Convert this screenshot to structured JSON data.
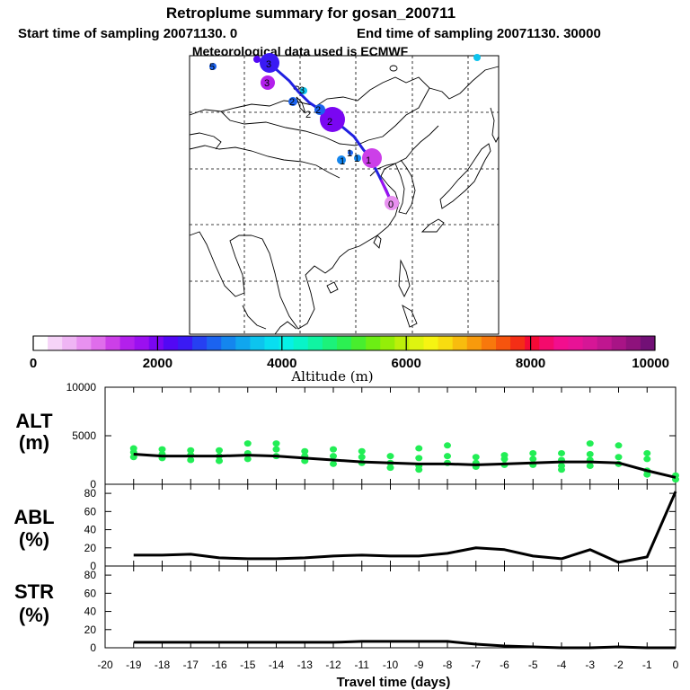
{
  "title": {
    "line1": "Retroplume summary for gosan_200711",
    "line2a": "Start time of sampling 20071130.     0",
    "line2b": "End time of sampling 20071130. 30000",
    "line3": "Meteorological data used is ECMWF"
  },
  "colorbar": {
    "ticks": [
      "0",
      "2000",
      "4000",
      "6000",
      "8000",
      "10000"
    ],
    "label": "Altitude (m)",
    "colors": [
      "#ffffff",
      "#f6d4f8",
      "#efb5f4",
      "#e891f0",
      "#df6deb",
      "#cc3fe8",
      "#b320ec",
      "#9b10f0",
      "#7a06f2",
      "#5208f4",
      "#3a1af4",
      "#2640f2",
      "#1b63f0",
      "#1486ee",
      "#10a6ee",
      "#0dc4ee",
      "#08def0",
      "#06f0e6",
      "#08f4c8",
      "#10f4a2",
      "#1cf27a",
      "#2cf052",
      "#48ee2e",
      "#6cee14",
      "#94ee08",
      "#bcf00a",
      "#def410",
      "#f6f412",
      "#f8dc10",
      "#f8bc0e",
      "#f89a0c",
      "#f8780c",
      "#f6540e",
      "#f42e16",
      "#f40a36",
      "#f40a6c",
      "#f20e8e",
      "#e81296",
      "#d61696",
      "#c01690",
      "#a81486",
      "#8e127c",
      "#721076"
    ]
  },
  "map": {
    "labels": [
      "0",
      "1",
      "1",
      "1",
      "1",
      "2",
      "2",
      "2",
      "2",
      "3",
      "3",
      "3",
      "5"
    ]
  },
  "chart_data": [
    {
      "type": "line",
      "panel": "ALT",
      "ylabel": "ALT\n(m)",
      "ylabel_lines": [
        "ALT",
        "(m)"
      ],
      "ylim": [
        0,
        10000
      ],
      "yticks": [
        "0",
        "5000",
        "10000"
      ],
      "x": [
        -19,
        -18,
        -17,
        -16,
        -15,
        -14,
        -13,
        -12,
        -11,
        -10,
        -9,
        -8,
        -7,
        -6,
        -5,
        -4,
        -3,
        -2,
        -1,
        0
      ],
      "values": [
        3100,
        2900,
        2900,
        2900,
        3000,
        2900,
        2700,
        2500,
        2300,
        2200,
        2100,
        2100,
        2000,
        2100,
        2200,
        2300,
        2300,
        2200,
        1400,
        700
      ],
      "scatter_color": "#22ee55",
      "scatter": [
        [
          -19,
          3700
        ],
        [
          -19,
          3300
        ],
        [
          -19,
          2800
        ],
        [
          -18,
          3600
        ],
        [
          -18,
          3100
        ],
        [
          -18,
          2700
        ],
        [
          -17,
          3500
        ],
        [
          -17,
          3000
        ],
        [
          -17,
          2500
        ],
        [
          -16,
          3500
        ],
        [
          -16,
          2900
        ],
        [
          -16,
          2400
        ],
        [
          -15,
          4200
        ],
        [
          -15,
          3200
        ],
        [
          -15,
          2600
        ],
        [
          -14,
          4200
        ],
        [
          -14,
          3600
        ],
        [
          -14,
          2900
        ],
        [
          -13,
          3400
        ],
        [
          -13,
          2900
        ],
        [
          -13,
          2400
        ],
        [
          -12,
          3600
        ],
        [
          -12,
          2900
        ],
        [
          -12,
          2100
        ],
        [
          -11,
          3400
        ],
        [
          -11,
          2800
        ],
        [
          -11,
          2200
        ],
        [
          -10,
          2900
        ],
        [
          -10,
          2200
        ],
        [
          -10,
          1700
        ],
        [
          -9,
          3700
        ],
        [
          -9,
          2700
        ],
        [
          -9,
          1900
        ],
        [
          -9,
          1500
        ],
        [
          -8,
          4000
        ],
        [
          -8,
          2900
        ],
        [
          -8,
          2200
        ],
        [
          -7,
          2800
        ],
        [
          -7,
          2200
        ],
        [
          -7,
          1800
        ],
        [
          -6,
          3000
        ],
        [
          -6,
          2600
        ],
        [
          -6,
          2000
        ],
        [
          -5,
          3200
        ],
        [
          -5,
          2600
        ],
        [
          -5,
          2000
        ],
        [
          -4,
          3200
        ],
        [
          -4,
          2500
        ],
        [
          -4,
          1900
        ],
        [
          -4,
          1500
        ],
        [
          -3,
          4200
        ],
        [
          -3,
          3100
        ],
        [
          -3,
          2500
        ],
        [
          -3,
          1900
        ],
        [
          -2,
          4000
        ],
        [
          -2,
          2800
        ],
        [
          -2,
          2100
        ],
        [
          -1,
          3200
        ],
        [
          -1,
          2600
        ],
        [
          -1,
          1400
        ],
        [
          -1,
          1000
        ],
        [
          0,
          900
        ],
        [
          0,
          500
        ]
      ],
      "xlim": [
        -20,
        0
      ]
    },
    {
      "type": "line",
      "panel": "ABL",
      "ylabel_lines": [
        "ABL",
        "(%)"
      ],
      "ylim": [
        0,
        90
      ],
      "yticks": [
        "0",
        "20",
        "40",
        "60",
        "80"
      ],
      "x": [
        -19,
        -18,
        -17,
        -16,
        -15,
        -14,
        -13,
        -12,
        -11,
        -10,
        -9,
        -8,
        -7,
        -6,
        -5,
        -4,
        -3,
        -2,
        -1,
        0
      ],
      "values": [
        12,
        12,
        13,
        9,
        8,
        8,
        9,
        11,
        12,
        11,
        11,
        14,
        20,
        18,
        11,
        8,
        18,
        4,
        10,
        82
      ],
      "xlim": [
        -20,
        0
      ]
    },
    {
      "type": "line",
      "panel": "STR",
      "ylabel_lines": [
        "STR",
        "(%)"
      ],
      "ylim": [
        0,
        90
      ],
      "yticks": [
        "0",
        "20",
        "40",
        "60",
        "80"
      ],
      "x": [
        -19,
        -18,
        -17,
        -16,
        -15,
        -14,
        -13,
        -12,
        -11,
        -10,
        -9,
        -8,
        -7,
        -6,
        -5,
        -4,
        -3,
        -2,
        -1,
        0
      ],
      "values": [
        6,
        6,
        6,
        6,
        6,
        6,
        6,
        6,
        7,
        7,
        7,
        7,
        4,
        2,
        1,
        0,
        0,
        1,
        0,
        0
      ],
      "xlim": [
        -20,
        0
      ],
      "xticks": [
        "-20",
        "-19",
        "-18",
        "-17",
        "-16",
        "-15",
        "-14",
        "-13",
        "-12",
        "-11",
        "-10",
        "-9",
        "-8",
        "-7",
        "-6",
        "-5",
        "-4",
        "-3",
        "-2",
        "-1",
        "0"
      ],
      "xlabel": "Travel time (days)"
    }
  ]
}
